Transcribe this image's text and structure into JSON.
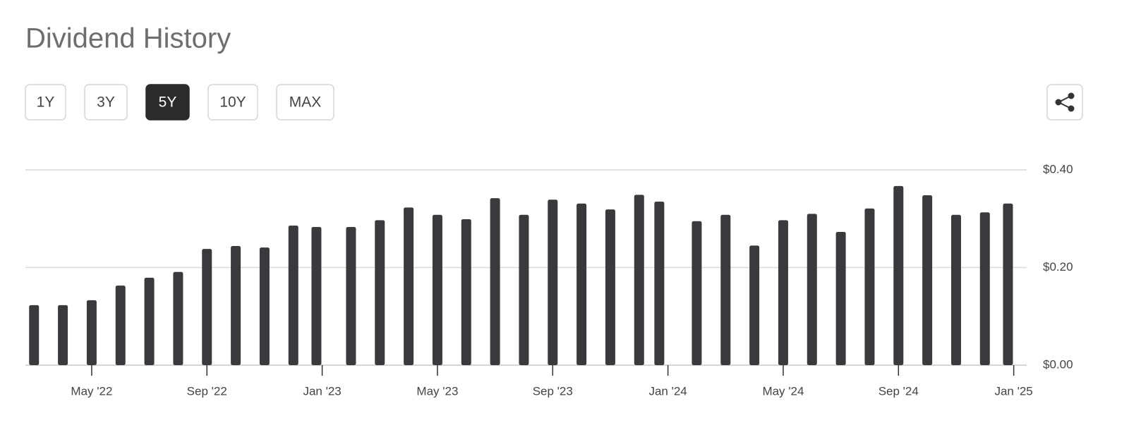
{
  "controls": {
    "ranges": [
      "1Y",
      "3Y",
      "5Y",
      "10Y",
      "MAX"
    ],
    "selected": 2
  },
  "chart_data": {
    "type": "bar",
    "title": "Dividend History",
    "color": "#3a3a3c",
    "grid": true,
    "x": [
      2,
      3,
      4,
      5,
      6,
      7,
      8,
      9,
      10,
      11,
      11.8,
      13,
      14,
      15,
      16,
      17,
      18,
      19,
      20,
      21,
      22,
      23,
      23.7,
      25,
      26,
      27,
      28,
      29,
      30,
      31,
      32,
      33,
      34,
      35,
      35.8
    ],
    "values": [
      0.123,
      0.123,
      0.133,
      0.163,
      0.179,
      0.191,
      0.238,
      0.244,
      0.241,
      0.286,
      0.283,
      0.283,
      0.297,
      0.323,
      0.308,
      0.299,
      0.342,
      0.308,
      0.339,
      0.331,
      0.319,
      0.349,
      0.335,
      0.295,
      0.308,
      0.245,
      0.297,
      0.31,
      0.273,
      0.321,
      0.367,
      0.348,
      0.308,
      0.313,
      0.331
    ],
    "xlim": [
      1.7,
      36.45
    ],
    "xticks": [
      {
        "value": 4,
        "label": "May '22"
      },
      {
        "value": 8,
        "label": "Sep '22"
      },
      {
        "value": 12,
        "label": "Jan '23"
      },
      {
        "value": 16,
        "label": "May '23"
      },
      {
        "value": 20,
        "label": "Sep '23"
      },
      {
        "value": 24,
        "label": "Jan '24"
      },
      {
        "value": 28,
        "label": "May '24"
      },
      {
        "value": 32,
        "label": "Sep '24"
      },
      {
        "value": 36,
        "label": "Jan '25"
      }
    ],
    "ylim": [
      0,
      0.4
    ],
    "yticks": [
      {
        "value": 0,
        "label": "$0.00"
      },
      {
        "value": 0.2,
        "label": "$0.20"
      },
      {
        "value": 0.4,
        "label": "$0.40"
      }
    ]
  }
}
